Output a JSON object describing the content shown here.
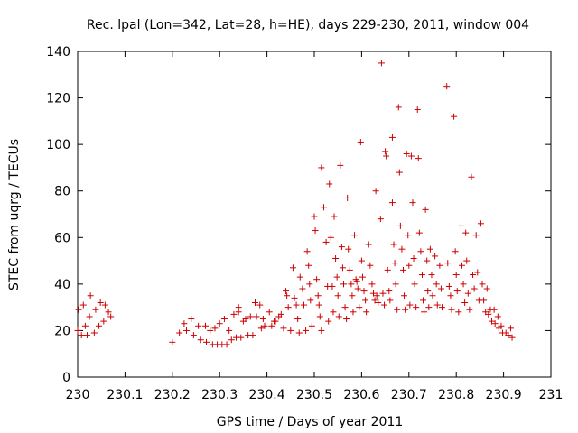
{
  "chart_data": {
    "type": "scatter",
    "title": "Rec. lpal (Lon=342, Lat=28, h=HE), days 229-230, 2011, window 004",
    "xlabel": "GPS time / Days of year 2011",
    "ylabel": "STEC from uqrg / TECUs",
    "xlim": [
      230,
      231
    ],
    "ylim": [
      0,
      140
    ],
    "xticks": [
      "230",
      "230.1",
      "230.2",
      "230.3",
      "230.4",
      "230.5",
      "230.6",
      "230.7",
      "230.8",
      "230.9",
      "231"
    ],
    "yticks": [
      "0",
      "20",
      "40",
      "60",
      "80",
      "100",
      "120",
      "140"
    ],
    "grid": false,
    "legend": "none",
    "marker": "plus",
    "color": "#cc0000",
    "series": [
      {
        "points": [
          [
            230.0,
            20
          ],
          [
            230.002,
            29
          ],
          [
            230.008,
            18
          ],
          [
            230.012,
            31
          ],
          [
            230.016,
            22
          ],
          [
            230.02,
            18
          ],
          [
            230.025,
            26
          ],
          [
            230.027,
            35
          ],
          [
            230.035,
            19
          ],
          [
            230.038,
            29
          ],
          [
            230.045,
            22
          ],
          [
            230.048,
            32
          ],
          [
            230.055,
            24
          ],
          [
            230.058,
            31
          ],
          [
            230.065,
            28
          ],
          [
            230.07,
            26
          ],
          [
            230.2,
            15
          ],
          [
            230.215,
            19
          ],
          [
            230.225,
            23
          ],
          [
            230.23,
            20
          ],
          [
            230.24,
            25
          ],
          [
            230.245,
            18
          ],
          [
            230.255,
            22
          ],
          [
            230.26,
            16
          ],
          [
            230.27,
            22
          ],
          [
            230.272,
            15
          ],
          [
            230.28,
            20
          ],
          [
            230.285,
            14
          ],
          [
            230.29,
            21
          ],
          [
            230.295,
            14
          ],
          [
            230.3,
            23
          ],
          [
            230.305,
            14
          ],
          [
            230.31,
            25
          ],
          [
            230.315,
            14
          ],
          [
            230.32,
            20
          ],
          [
            230.325,
            16
          ],
          [
            230.33,
            27
          ],
          [
            230.335,
            17
          ],
          [
            230.34,
            30
          ],
          [
            230.34,
            28
          ],
          [
            230.345,
            17
          ],
          [
            230.35,
            24
          ],
          [
            230.355,
            25
          ],
          [
            230.36,
            18
          ],
          [
            230.365,
            26
          ],
          [
            230.37,
            18
          ],
          [
            230.375,
            32
          ],
          [
            230.378,
            26
          ],
          [
            230.385,
            31
          ],
          [
            230.388,
            21
          ],
          [
            230.392,
            25
          ],
          [
            230.395,
            22
          ],
          [
            230.405,
            28
          ],
          [
            230.41,
            22
          ],
          [
            230.415,
            24
          ],
          [
            230.418,
            24
          ],
          [
            230.425,
            26
          ],
          [
            230.43,
            27
          ],
          [
            230.435,
            21
          ],
          [
            230.44,
            37
          ],
          [
            230.442,
            35
          ],
          [
            230.445,
            30
          ],
          [
            230.45,
            20
          ],
          [
            230.455,
            47
          ],
          [
            230.458,
            34
          ],
          [
            230.462,
            31
          ],
          [
            230.465,
            25
          ],
          [
            230.468,
            19
          ],
          [
            230.47,
            43
          ],
          [
            230.475,
            38
          ],
          [
            230.478,
            31
          ],
          [
            230.482,
            20
          ],
          [
            230.485,
            54
          ],
          [
            230.488,
            48
          ],
          [
            230.49,
            40
          ],
          [
            230.492,
            33
          ],
          [
            230.495,
            22
          ],
          [
            230.5,
            69
          ],
          [
            230.502,
            63
          ],
          [
            230.505,
            42
          ],
          [
            230.508,
            35
          ],
          [
            230.51,
            31
          ],
          [
            230.512,
            26
          ],
          [
            230.515,
            20
          ],
          [
            230.515,
            90
          ],
          [
            230.52,
            73
          ],
          [
            230.525,
            58
          ],
          [
            230.528,
            39
          ],
          [
            230.53,
            24
          ],
          [
            230.532,
            83
          ],
          [
            230.535,
            60
          ],
          [
            230.538,
            39
          ],
          [
            230.54,
            28
          ],
          [
            230.542,
            69
          ],
          [
            230.545,
            51
          ],
          [
            230.548,
            43
          ],
          [
            230.55,
            35
          ],
          [
            230.552,
            26
          ],
          [
            230.555,
            91
          ],
          [
            230.558,
            56
          ],
          [
            230.56,
            47
          ],
          [
            230.562,
            40
          ],
          [
            230.565,
            30
          ],
          [
            230.568,
            25
          ],
          [
            230.57,
            77
          ],
          [
            230.572,
            55
          ],
          [
            230.575,
            46
          ],
          [
            230.578,
            40
          ],
          [
            230.58,
            35
          ],
          [
            230.582,
            28
          ],
          [
            230.585,
            61
          ],
          [
            230.588,
            42
          ],
          [
            230.59,
            41
          ],
          [
            230.592,
            38
          ],
          [
            230.595,
            30
          ],
          [
            230.598,
            101
          ],
          [
            230.6,
            50
          ],
          [
            230.602,
            43
          ],
          [
            230.605,
            37
          ],
          [
            230.608,
            33
          ],
          [
            230.61,
            28
          ],
          [
            230.615,
            57
          ],
          [
            230.618,
            48
          ],
          [
            230.622,
            40
          ],
          [
            230.625,
            36
          ],
          [
            230.628,
            33
          ],
          [
            230.63,
            80
          ],
          [
            230.632,
            35
          ],
          [
            230.635,
            32
          ],
          [
            230.64,
            68
          ],
          [
            230.642,
            135
          ],
          [
            230.645,
            36
          ],
          [
            230.648,
            31
          ],
          [
            230.65,
            97
          ],
          [
            230.652,
            95
          ],
          [
            230.655,
            46
          ],
          [
            230.658,
            37
          ],
          [
            230.66,
            33
          ],
          [
            230.665,
            75
          ],
          [
            230.665,
            103
          ],
          [
            230.668,
            57
          ],
          [
            230.67,
            49
          ],
          [
            230.672,
            40
          ],
          [
            230.675,
            29
          ],
          [
            230.678,
            116
          ],
          [
            230.68,
            88
          ],
          [
            230.682,
            65
          ],
          [
            230.685,
            55
          ],
          [
            230.688,
            46
          ],
          [
            230.69,
            35
          ],
          [
            230.692,
            29
          ],
          [
            230.695,
            96
          ],
          [
            230.698,
            61
          ],
          [
            230.7,
            48
          ],
          [
            230.702,
            31
          ],
          [
            230.705,
            95
          ],
          [
            230.708,
            75
          ],
          [
            230.71,
            51
          ],
          [
            230.712,
            40
          ],
          [
            230.715,
            30
          ],
          [
            230.718,
            115
          ],
          [
            230.72,
            94
          ],
          [
            230.722,
            62
          ],
          [
            230.725,
            54
          ],
          [
            230.728,
            44
          ],
          [
            230.73,
            33
          ],
          [
            230.732,
            28
          ],
          [
            230.735,
            72
          ],
          [
            230.738,
            50
          ],
          [
            230.74,
            37
          ],
          [
            230.742,
            30
          ],
          [
            230.745,
            55
          ],
          [
            230.748,
            44
          ],
          [
            230.75,
            35
          ],
          [
            230.755,
            52
          ],
          [
            230.758,
            40
          ],
          [
            230.76,
            31
          ],
          [
            230.765,
            48
          ],
          [
            230.768,
            38
          ],
          [
            230.77,
            30
          ],
          [
            230.78,
            125
          ],
          [
            230.782,
            49
          ],
          [
            230.785,
            39
          ],
          [
            230.788,
            35
          ],
          [
            230.79,
            29
          ],
          [
            230.795,
            112
          ],
          [
            230.798,
            54
          ],
          [
            230.8,
            44
          ],
          [
            230.802,
            37
          ],
          [
            230.805,
            28
          ],
          [
            230.81,
            65
          ],
          [
            230.812,
            48
          ],
          [
            230.815,
            40
          ],
          [
            230.818,
            32
          ],
          [
            230.82,
            62
          ],
          [
            230.822,
            50
          ],
          [
            230.825,
            36
          ],
          [
            230.828,
            29
          ],
          [
            230.832,
            86
          ],
          [
            230.835,
            44
          ],
          [
            230.838,
            38
          ],
          [
            230.842,
            61
          ],
          [
            230.845,
            45
          ],
          [
            230.848,
            33
          ],
          [
            230.852,
            66
          ],
          [
            230.855,
            40
          ],
          [
            230.858,
            33
          ],
          [
            230.862,
            28
          ],
          [
            230.865,
            38
          ],
          [
            230.868,
            27
          ],
          [
            230.872,
            29
          ],
          [
            230.875,
            24
          ],
          [
            230.88,
            29
          ],
          [
            230.882,
            23
          ],
          [
            230.888,
            26
          ],
          [
            230.89,
            21
          ],
          [
            230.895,
            22
          ],
          [
            230.898,
            19
          ],
          [
            230.905,
            19
          ],
          [
            230.91,
            18
          ],
          [
            230.915,
            21
          ],
          [
            230.918,
            17
          ]
        ]
      }
    ]
  }
}
